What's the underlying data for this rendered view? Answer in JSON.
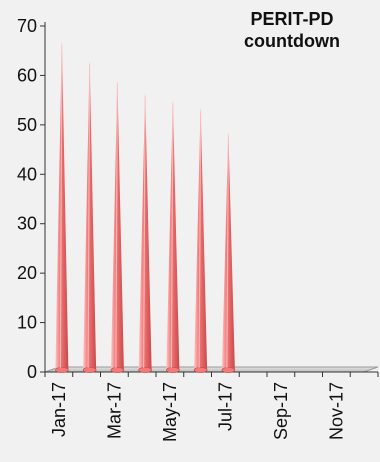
{
  "chart_data": {
    "type": "bar",
    "title_lines": [
      "PERIT-PD",
      "countdown"
    ],
    "xlabel": "",
    "ylabel": "",
    "ylim": [
      0,
      70
    ],
    "yticks": [
      0,
      10,
      20,
      30,
      40,
      50,
      60,
      70
    ],
    "categories": [
      "Jan-17",
      "Feb-17",
      "Mar-17",
      "Apr-17",
      "May-17",
      "Jun-17",
      "Jul-17",
      "Aug-17",
      "Sep-17",
      "Oct-17",
      "Nov-17",
      "Dec-17"
    ],
    "x_tick_labels": [
      "Jan-17",
      "Mar-17",
      "May-17",
      "Jul-17",
      "Sep-17",
      "Nov-17"
    ],
    "values": [
      67,
      63,
      59,
      56.5,
      55,
      53.5,
      48.5,
      0,
      0,
      0,
      0,
      0
    ],
    "bar_shape": "3d-cone",
    "bar_color": "#f47a7a",
    "bar_highlight_color": "#ffc4c4",
    "bar_shadow_color": "#c84848",
    "grid": false,
    "legend": "none"
  }
}
